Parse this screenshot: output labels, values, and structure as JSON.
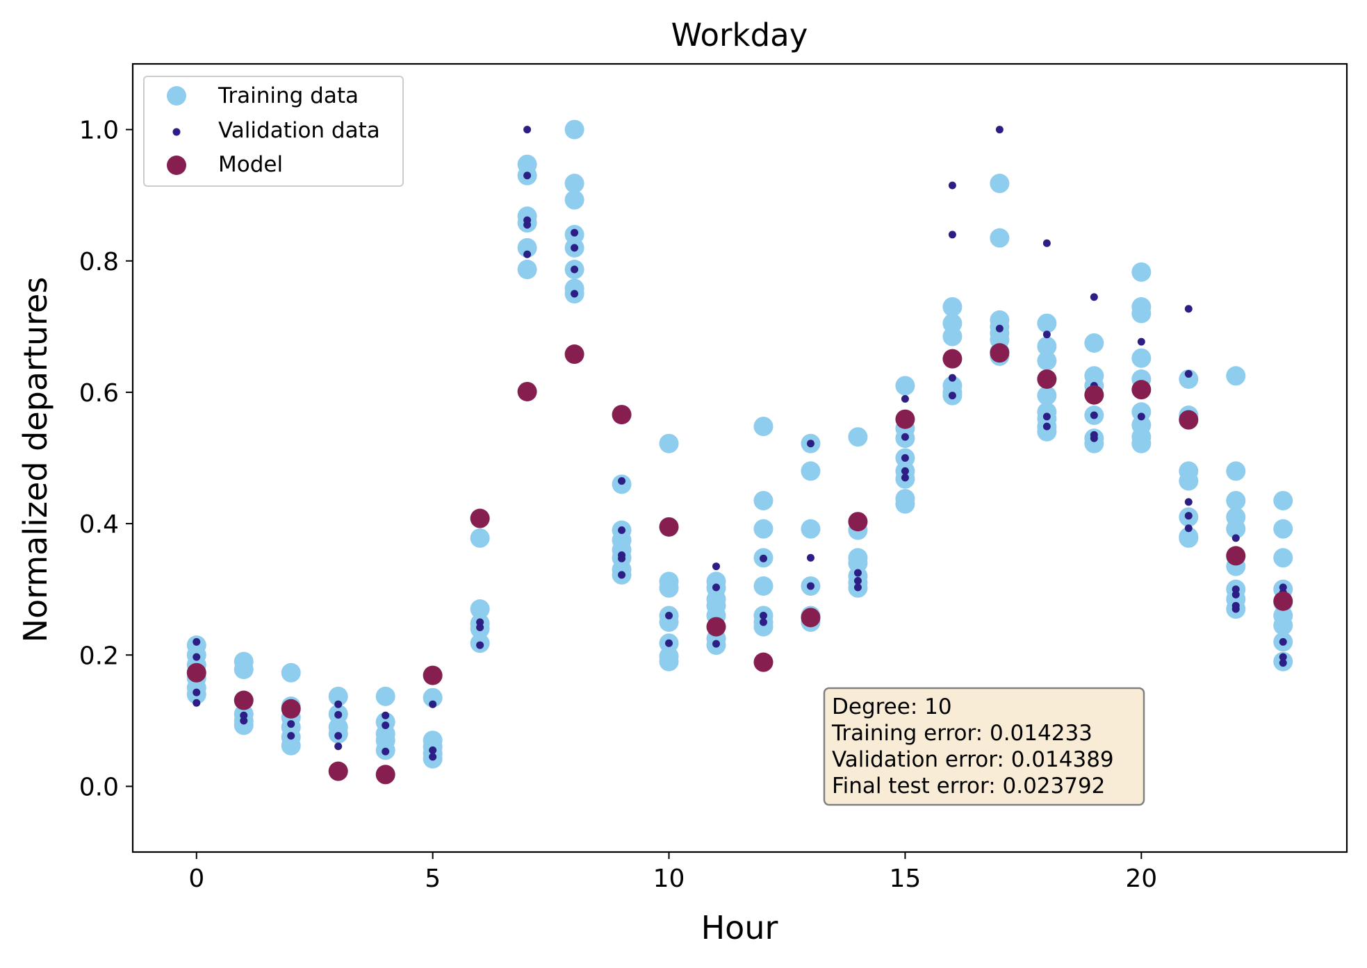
{
  "chart_data": {
    "type": "scatter",
    "title": "Workday",
    "xlabel": "Hour",
    "ylabel": "Normalized departures",
    "xlim": [
      -1.35,
      24.35
    ],
    "ylim": [
      -0.1,
      1.1
    ],
    "xticks": [
      0,
      5,
      10,
      15,
      20
    ],
    "yticks": [
      0.0,
      0.2,
      0.4,
      0.6,
      0.8,
      1.0
    ],
    "xtick_labels": [
      "0",
      "5",
      "10",
      "15",
      "20"
    ],
    "ytick_labels": [
      "0.0",
      "0.2",
      "0.4",
      "0.6",
      "0.8",
      "1.0"
    ],
    "grid": false,
    "legend_position": "top-left",
    "series": [
      {
        "name": "Training data",
        "color": "#8ecdee",
        "marker": "large-circle",
        "points": [
          [
            0,
            0.215
          ],
          [
            0,
            0.2
          ],
          [
            0,
            0.185
          ],
          [
            0,
            0.165
          ],
          [
            0,
            0.15
          ],
          [
            0,
            0.14
          ],
          [
            1,
            0.19
          ],
          [
            1,
            0.178
          ],
          [
            1,
            0.11
          ],
          [
            1,
            0.1
          ],
          [
            1,
            0.093
          ],
          [
            2,
            0.173
          ],
          [
            2,
            0.122
          ],
          [
            2,
            0.105
          ],
          [
            2,
            0.09
          ],
          [
            2,
            0.075
          ],
          [
            2,
            0.062
          ],
          [
            3,
            0.137
          ],
          [
            3,
            0.11
          ],
          [
            3,
            0.09
          ],
          [
            3,
            0.08
          ],
          [
            4,
            0.137
          ],
          [
            4,
            0.098
          ],
          [
            4,
            0.08
          ],
          [
            4,
            0.07
          ],
          [
            4,
            0.055
          ],
          [
            5,
            0.135
          ],
          [
            5,
            0.07
          ],
          [
            5,
            0.06
          ],
          [
            5,
            0.05
          ],
          [
            5,
            0.042
          ],
          [
            6,
            0.378
          ],
          [
            6,
            0.27
          ],
          [
            6,
            0.248
          ],
          [
            6,
            0.24
          ],
          [
            6,
            0.218
          ],
          [
            7,
            0.947
          ],
          [
            7,
            0.93
          ],
          [
            7,
            0.868
          ],
          [
            7,
            0.858
          ],
          [
            7,
            0.82
          ],
          [
            7,
            0.787
          ],
          [
            8,
            1.0
          ],
          [
            8,
            0.918
          ],
          [
            8,
            0.893
          ],
          [
            8,
            0.84
          ],
          [
            8,
            0.82
          ],
          [
            8,
            0.787
          ],
          [
            8,
            0.758
          ],
          [
            8,
            0.75
          ],
          [
            9,
            0.46
          ],
          [
            9,
            0.39
          ],
          [
            9,
            0.375
          ],
          [
            9,
            0.36
          ],
          [
            9,
            0.348
          ],
          [
            9,
            0.33
          ],
          [
            9,
            0.322
          ],
          [
            10,
            0.522
          ],
          [
            10,
            0.312
          ],
          [
            10,
            0.302
          ],
          [
            10,
            0.26
          ],
          [
            10,
            0.25
          ],
          [
            10,
            0.218
          ],
          [
            10,
            0.198
          ],
          [
            10,
            0.19
          ],
          [
            11,
            0.312
          ],
          [
            11,
            0.302
          ],
          [
            11,
            0.285
          ],
          [
            11,
            0.275
          ],
          [
            11,
            0.26
          ],
          [
            11,
            0.225
          ],
          [
            11,
            0.215
          ],
          [
            12,
            0.548
          ],
          [
            12,
            0.435
          ],
          [
            12,
            0.392
          ],
          [
            12,
            0.348
          ],
          [
            12,
            0.305
          ],
          [
            12,
            0.26
          ],
          [
            12,
            0.25
          ],
          [
            12,
            0.243
          ],
          [
            13,
            0.522
          ],
          [
            13,
            0.48
          ],
          [
            13,
            0.392
          ],
          [
            13,
            0.305
          ],
          [
            13,
            0.26
          ],
          [
            13,
            0.25
          ],
          [
            14,
            0.532
          ],
          [
            14,
            0.39
          ],
          [
            14,
            0.348
          ],
          [
            14,
            0.34
          ],
          [
            14,
            0.32
          ],
          [
            14,
            0.31
          ],
          [
            14,
            0.302
          ],
          [
            15,
            0.61
          ],
          [
            15,
            0.545
          ],
          [
            15,
            0.53
          ],
          [
            15,
            0.5
          ],
          [
            15,
            0.48
          ],
          [
            15,
            0.468
          ],
          [
            15,
            0.438
          ],
          [
            15,
            0.43
          ],
          [
            16,
            0.73
          ],
          [
            16,
            0.705
          ],
          [
            16,
            0.685
          ],
          [
            16,
            0.61
          ],
          [
            16,
            0.6
          ],
          [
            16,
            0.595
          ],
          [
            17,
            0.918
          ],
          [
            17,
            0.835
          ],
          [
            17,
            0.71
          ],
          [
            17,
            0.7
          ],
          [
            17,
            0.69
          ],
          [
            17,
            0.68
          ],
          [
            17,
            0.662
          ],
          [
            17,
            0.655
          ],
          [
            18,
            0.705
          ],
          [
            18,
            0.67
          ],
          [
            18,
            0.648
          ],
          [
            18,
            0.62
          ],
          [
            18,
            0.595
          ],
          [
            18,
            0.57
          ],
          [
            18,
            0.56
          ],
          [
            18,
            0.548
          ],
          [
            18,
            0.54
          ],
          [
            19,
            0.675
          ],
          [
            19,
            0.625
          ],
          [
            19,
            0.61
          ],
          [
            19,
            0.565
          ],
          [
            19,
            0.53
          ],
          [
            19,
            0.522
          ],
          [
            20,
            0.783
          ],
          [
            20,
            0.73
          ],
          [
            20,
            0.72
          ],
          [
            20,
            0.652
          ],
          [
            20,
            0.62
          ],
          [
            20,
            0.57
          ],
          [
            20,
            0.55
          ],
          [
            20,
            0.532
          ],
          [
            20,
            0.522
          ],
          [
            21,
            0.62
          ],
          [
            21,
            0.565
          ],
          [
            21,
            0.48
          ],
          [
            21,
            0.465
          ],
          [
            21,
            0.41
          ],
          [
            21,
            0.38
          ],
          [
            21,
            0.378
          ],
          [
            22,
            0.625
          ],
          [
            22,
            0.48
          ],
          [
            22,
            0.435
          ],
          [
            22,
            0.41
          ],
          [
            22,
            0.392
          ],
          [
            22,
            0.35
          ],
          [
            22,
            0.335
          ],
          [
            22,
            0.3
          ],
          [
            22,
            0.285
          ],
          [
            22,
            0.27
          ],
          [
            23,
            0.435
          ],
          [
            23,
            0.392
          ],
          [
            23,
            0.348
          ],
          [
            23,
            0.3
          ],
          [
            23,
            0.28
          ],
          [
            23,
            0.26
          ],
          [
            23,
            0.245
          ],
          [
            23,
            0.22
          ],
          [
            23,
            0.19
          ]
        ]
      },
      {
        "name": "Validation data",
        "color": "#2d1e86",
        "marker": "small-circle",
        "points": [
          [
            0,
            0.22
          ],
          [
            0,
            0.197
          ],
          [
            0,
            0.143
          ],
          [
            0,
            0.127
          ],
          [
            1,
            0.108
          ],
          [
            1,
            0.1
          ],
          [
            2,
            0.095
          ],
          [
            2,
            0.077
          ],
          [
            3,
            0.125
          ],
          [
            3,
            0.109
          ],
          [
            3,
            0.077
          ],
          [
            3,
            0.061
          ],
          [
            4,
            0.108
          ],
          [
            4,
            0.093
          ],
          [
            4,
            0.053
          ],
          [
            5,
            0.125
          ],
          [
            5,
            0.055
          ],
          [
            5,
            0.045
          ],
          [
            6,
            0.25
          ],
          [
            6,
            0.242
          ],
          [
            6,
            0.215
          ],
          [
            7,
            1.0
          ],
          [
            7,
            0.93
          ],
          [
            7,
            0.862
          ],
          [
            7,
            0.855
          ],
          [
            7,
            0.81
          ],
          [
            8,
            0.843
          ],
          [
            8,
            0.82
          ],
          [
            8,
            0.787
          ],
          [
            8,
            0.75
          ],
          [
            9,
            0.465
          ],
          [
            9,
            0.39
          ],
          [
            9,
            0.352
          ],
          [
            9,
            0.347
          ],
          [
            9,
            0.322
          ],
          [
            10,
            0.26
          ],
          [
            10,
            0.218
          ],
          [
            11,
            0.335
          ],
          [
            11,
            0.303
          ],
          [
            11,
            0.217
          ],
          [
            12,
            0.347
          ],
          [
            12,
            0.26
          ],
          [
            12,
            0.25
          ],
          [
            13,
            0.522
          ],
          [
            13,
            0.348
          ],
          [
            13,
            0.305
          ],
          [
            13,
            0.26
          ],
          [
            14,
            0.325
          ],
          [
            14,
            0.313
          ],
          [
            14,
            0.303
          ],
          [
            15,
            0.59
          ],
          [
            15,
            0.532
          ],
          [
            15,
            0.5
          ],
          [
            15,
            0.48
          ],
          [
            15,
            0.47
          ],
          [
            16,
            0.915
          ],
          [
            16,
            0.84
          ],
          [
            16,
            0.622
          ],
          [
            16,
            0.595
          ],
          [
            17,
            1.0
          ],
          [
            17,
            0.697
          ],
          [
            18,
            0.827
          ],
          [
            18,
            0.688
          ],
          [
            18,
            0.563
          ],
          [
            18,
            0.548
          ],
          [
            19,
            0.745
          ],
          [
            19,
            0.61
          ],
          [
            19,
            0.565
          ],
          [
            19,
            0.535
          ],
          [
            19,
            0.53
          ],
          [
            20,
            0.677
          ],
          [
            20,
            0.563
          ],
          [
            21,
            0.727
          ],
          [
            21,
            0.628
          ],
          [
            21,
            0.433
          ],
          [
            21,
            0.412
          ],
          [
            21,
            0.393
          ],
          [
            22,
            0.378
          ],
          [
            22,
            0.3
          ],
          [
            22,
            0.292
          ],
          [
            22,
            0.275
          ],
          [
            22,
            0.27
          ],
          [
            23,
            0.303
          ],
          [
            23,
            0.295
          ],
          [
            23,
            0.22
          ],
          [
            23,
            0.197
          ],
          [
            23,
            0.188
          ]
        ]
      },
      {
        "name": "Model",
        "color": "#861e4f",
        "marker": "large-circle",
        "points": [
          [
            0,
            0.173
          ],
          [
            1,
            0.131
          ],
          [
            2,
            0.118
          ],
          [
            3,
            0.023
          ],
          [
            4,
            0.018
          ],
          [
            5,
            0.169
          ],
          [
            6,
            0.408
          ],
          [
            7,
            0.601
          ],
          [
            8,
            0.658
          ],
          [
            9,
            0.566
          ],
          [
            10,
            0.395
          ],
          [
            11,
            0.243
          ],
          [
            12,
            0.189
          ],
          [
            13,
            0.257
          ],
          [
            14,
            0.403
          ],
          [
            15,
            0.559
          ],
          [
            16,
            0.651
          ],
          [
            17,
            0.66
          ],
          [
            18,
            0.62
          ],
          [
            19,
            0.596
          ],
          [
            20,
            0.604
          ],
          [
            21,
            0.558
          ],
          [
            22,
            0.351
          ],
          [
            23,
            0.282
          ]
        ]
      }
    ],
    "annotation": {
      "lines": [
        "Degree: 10",
        "Training error: 0.014233",
        "Validation error: 0.014389",
        "Final test error: 0.023792"
      ],
      "box_color": "#f8ecd6",
      "edge_color": "#808080"
    }
  }
}
